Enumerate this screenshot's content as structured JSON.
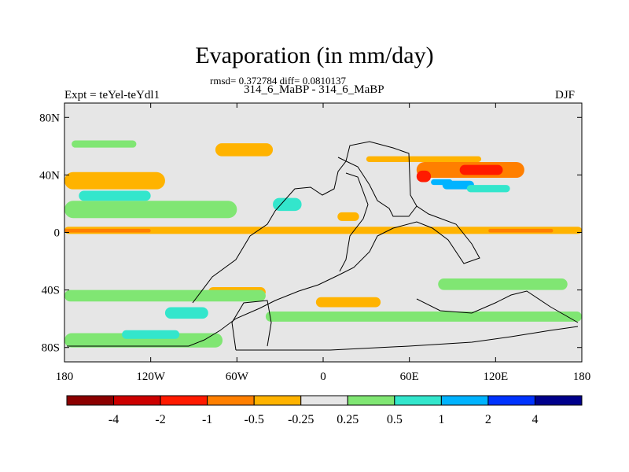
{
  "header": {
    "title": "Evaporation (in mm/day)",
    "stats": "rmsd= 0.372784 diff= 0.0810137",
    "runs": "314_6_MaBP - 314_6_MaBP",
    "experiment": "Expt = teYel-teYdl1",
    "season": "DJF"
  },
  "chart_data": {
    "type": "heatmap",
    "title": "Evaporation (in mm/day)",
    "subtitle": "rmsd= 0.372784 diff= 0.0810137",
    "xlabel": "",
    "ylabel": "",
    "xlim": [
      -180,
      180
    ],
    "ylim": [
      -90,
      90
    ],
    "x_ticks": [
      {
        "value": -180,
        "label": "180"
      },
      {
        "value": -120,
        "label": "120W"
      },
      {
        "value": -60,
        "label": "60W"
      },
      {
        "value": 0,
        "label": "0"
      },
      {
        "value": 60,
        "label": "60E"
      },
      {
        "value": 120,
        "label": "120E"
      },
      {
        "value": 180,
        "label": "180"
      }
    ],
    "y_ticks": [
      {
        "value": 80,
        "label": "80N"
      },
      {
        "value": 40,
        "label": "40N"
      },
      {
        "value": 0,
        "label": "0"
      },
      {
        "value": -40,
        "label": "40S"
      },
      {
        "value": -80,
        "label": "80S"
      }
    ],
    "colorbar": {
      "colors": [
        "#8b0000",
        "#cc0000",
        "#ff1a00",
        "#ff7f00",
        "#ffb300",
        "#e6e6e6",
        "#80e673",
        "#33e6cc",
        "#00b3ff",
        "#0033ff",
        "#00008b"
      ],
      "labels": [
        "-4",
        "-2",
        "-1",
        "-0.5",
        "-0.25",
        "0.25",
        "0.5",
        "1",
        "2",
        "4"
      ]
    },
    "field_regions": [
      {
        "cls": 4,
        "lon": [
          -180,
          180
        ],
        "lat": [
          -1,
          4
        ]
      },
      {
        "cls": 3,
        "lon": [
          -180,
          -120
        ],
        "lat": [
          0,
          2.5
        ]
      },
      {
        "cls": 3,
        "lon": [
          115,
          160
        ],
        "lat": [
          0,
          2.5
        ]
      },
      {
        "cls": 3,
        "lon": [
          65,
          140
        ],
        "lat": [
          38,
          49
        ]
      },
      {
        "cls": 2,
        "lon": [
          65,
          75
        ],
        "lat": [
          35,
          43
        ]
      },
      {
        "cls": 2,
        "lon": [
          95,
          125
        ],
        "lat": [
          40,
          47
        ]
      },
      {
        "cls": 8,
        "lon": [
          83,
          105
        ],
        "lat": [
          30,
          36
        ]
      },
      {
        "cls": 4,
        "lon": [
          30,
          110
        ],
        "lat": [
          49,
          53
        ]
      },
      {
        "cls": 4,
        "lon": [
          -180,
          -110
        ],
        "lat": [
          30,
          42
        ]
      },
      {
        "cls": 4,
        "lon": [
          -75,
          -35
        ],
        "lat": [
          53,
          62
        ]
      },
      {
        "cls": 4,
        "lon": [
          -5,
          40
        ],
        "lat": [
          -52,
          -45
        ]
      },
      {
        "cls": 4,
        "lon": [
          -80,
          -40
        ],
        "lat": [
          -45,
          -38
        ]
      },
      {
        "cls": 4,
        "lon": [
          10,
          25
        ],
        "lat": [
          8,
          14
        ]
      },
      {
        "cls": 6,
        "lon": [
          -175,
          -130
        ],
        "lat": [
          59,
          64
        ]
      },
      {
        "cls": 6,
        "lon": [
          -180,
          -60
        ],
        "lat": [
          10,
          22
        ]
      },
      {
        "cls": 6,
        "lon": [
          -180,
          -40
        ],
        "lat": [
          -48,
          -40
        ]
      },
      {
        "cls": 6,
        "lon": [
          -40,
          180
        ],
        "lat": [
          -62,
          -55
        ]
      },
      {
        "cls": 6,
        "lon": [
          -180,
          -70
        ],
        "lat": [
          -80,
          -70
        ]
      },
      {
        "cls": 6,
        "lon": [
          80,
          170
        ],
        "lat": [
          -40,
          -32
        ]
      },
      {
        "cls": 7,
        "lon": [
          -170,
          -120
        ],
        "lat": [
          22,
          29
        ]
      },
      {
        "cls": 7,
        "lon": [
          -35,
          -15
        ],
        "lat": [
          15,
          24
        ]
      },
      {
        "cls": 7,
        "lon": [
          -110,
          -80
        ],
        "lat": [
          -60,
          -52
        ]
      },
      {
        "cls": 7,
        "lon": [
          -140,
          -100
        ],
        "lat": [
          -74,
          -68
        ]
      },
      {
        "cls": 7,
        "lon": [
          100,
          130
        ],
        "lat": [
          28,
          33
        ]
      },
      {
        "cls": 8,
        "lon": [
          75,
          90
        ],
        "lat": [
          33,
          37
        ]
      }
    ]
  }
}
